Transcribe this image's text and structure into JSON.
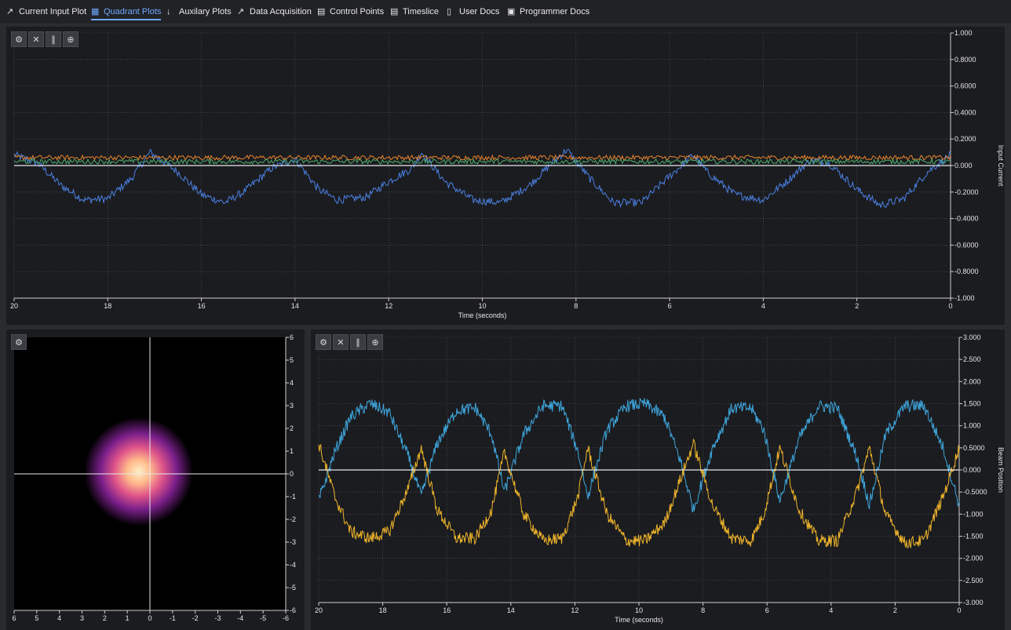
{
  "nav": {
    "tabs": [
      {
        "label": "Current Input Plot",
        "icon": "line-chart-icon",
        "active": false
      },
      {
        "label": "Quadrant Plots",
        "icon": "grid-icon",
        "active": true
      },
      {
        "label": "Auxilary Plots",
        "icon": "probe-icon",
        "active": false
      },
      {
        "label": "Data Acquisition",
        "icon": "area-chart-icon",
        "active": false
      },
      {
        "label": "Control Points",
        "icon": "table-icon",
        "active": false
      },
      {
        "label": "Timeslice",
        "icon": "table-icon",
        "active": false
      },
      {
        "label": "User Docs",
        "icon": "book-icon",
        "active": false
      },
      {
        "label": "Programmer Docs",
        "icon": "terminal-icon",
        "active": false
      }
    ]
  },
  "colors": {
    "background": "#1b1c20",
    "blue_series": "#4a7fe0",
    "orange_series": "#e8842c",
    "green_series": "#4cae6a",
    "yellow_series": "#f0b52a",
    "cyan_series": "#3ea6dc",
    "zero_line": "#e8e8e8"
  },
  "chart_data": [
    {
      "type": "line",
      "name": "input-current-plot",
      "xlabel": "Time (seconds)",
      "ylabel": "Input Current",
      "xlim": [
        20,
        0
      ],
      "ylim": [
        -1.0,
        1.0
      ],
      "x_ticks": [
        "20",
        "18",
        "16",
        "14",
        "12",
        "10",
        "8",
        "6",
        "4",
        "2",
        "0"
      ],
      "y_ticks": [
        "1.000",
        "0.8000",
        "0.6000",
        "0.4000",
        "0.2000",
        "0.000",
        "-0.2000",
        "-0.4000",
        "-0.6000",
        "-0.8000",
        "-1.000"
      ],
      "grid": true,
      "series": [
        {
          "color": "#4a7fe0",
          "x": [
            20,
            19.5,
            19,
            18.5,
            18,
            17.5,
            17.1,
            16.5,
            16,
            15.5,
            15.1,
            14.5,
            14,
            13.5,
            13.1,
            12.5,
            12,
            11.5,
            11.3,
            10.8,
            10.2,
            9.6,
            9,
            8.5,
            8.2,
            7.7,
            7.2,
            6.6,
            6,
            5.5,
            5.2,
            4.6,
            4,
            3.5,
            3,
            2.6,
            2,
            1.5,
            1,
            0.5,
            0
          ],
          "y": [
            0.08,
            0.02,
            -0.15,
            -0.26,
            -0.25,
            -0.1,
            0.1,
            -0.05,
            -0.22,
            -0.28,
            -0.2,
            -0.02,
            0.05,
            -0.18,
            -0.26,
            -0.24,
            -0.12,
            -0.02,
            0.1,
            -0.12,
            -0.26,
            -0.28,
            -0.15,
            0.02,
            0.12,
            -0.1,
            -0.28,
            -0.28,
            -0.08,
            0.08,
            -0.05,
            -0.22,
            -0.26,
            -0.12,
            0.04,
            0.02,
            -0.18,
            -0.3,
            -0.25,
            -0.05,
            0.08
          ]
        },
        {
          "color": "#e8842c",
          "x": [
            20,
            0
          ],
          "y": [
            0.06,
            0.06
          ]
        },
        {
          "color": "#4cae6a",
          "x": [
            20,
            0
          ],
          "y": [
            0.03,
            0.03
          ]
        },
        {
          "color": "#e8e8e8",
          "x": [
            20,
            0
          ],
          "y": [
            0.0,
            0.0
          ]
        }
      ]
    },
    {
      "type": "heatmap",
      "name": "beam-spot-plot",
      "xlim": [
        6,
        -6
      ],
      "ylim": [
        -6,
        6
      ],
      "x_ticks": [
        "6",
        "5",
        "4",
        "3",
        "2",
        "1",
        "0",
        "-1",
        "-2",
        "-3",
        "-4",
        "-5",
        "-6"
      ],
      "y_ticks": [
        "6",
        "5",
        "4",
        "3",
        "2",
        "1",
        "0",
        "-1",
        "-2",
        "-3",
        "-4",
        "-5",
        "-6"
      ],
      "spot_center": [
        0.5,
        0.1
      ],
      "spot_radius": 2.4
    },
    {
      "type": "line",
      "name": "beam-position-plot",
      "xlabel": "Time (seconds)",
      "ylabel": "Beam Position",
      "xlim": [
        20,
        0
      ],
      "ylim": [
        -3.0,
        3.0
      ],
      "x_ticks": [
        "20",
        "18",
        "16",
        "14",
        "12",
        "10",
        "8",
        "6",
        "4",
        "2",
        "0"
      ],
      "y_ticks": [
        "3.000",
        "2.500",
        "2.000",
        "1.500",
        "1.000",
        "0.5000",
        "0.000",
        "-0.5000",
        "-1.000",
        "-1.500",
        "-2.000",
        "-2.500",
        "-3.000"
      ],
      "grid": true,
      "series": [
        {
          "color": "#3ea6dc",
          "x": [
            20,
            19.5,
            19,
            18.4,
            17.8,
            17.2,
            16.8,
            16.3,
            15.7,
            15.1,
            14.6,
            14.2,
            13.6,
            13,
            12.4,
            11.9,
            11.6,
            11,
            10.4,
            9.8,
            9.2,
            8.7,
            8.3,
            7.7,
            7.1,
            6.5,
            6.1,
            5.6,
            5,
            4.4,
            3.8,
            3.2,
            2.8,
            2.3,
            1.7,
            1.1,
            0.5,
            0
          ],
          "y": [
            -0.7,
            0.4,
            1.2,
            1.5,
            1.3,
            0.3,
            -0.6,
            0.6,
            1.35,
            1.4,
            0.8,
            -0.5,
            0.8,
            1.45,
            1.45,
            0.4,
            -0.6,
            0.9,
            1.45,
            1.5,
            1.2,
            0.2,
            -0.9,
            0.5,
            1.4,
            1.4,
            0.9,
            -0.7,
            0.7,
            1.45,
            1.4,
            0.3,
            -0.8,
            0.8,
            1.45,
            1.45,
            0.5,
            -0.8
          ]
        },
        {
          "color": "#f0b52a",
          "x": [
            20,
            19.5,
            19,
            18.4,
            17.8,
            17.2,
            16.8,
            16.3,
            15.7,
            15.1,
            14.6,
            14.2,
            13.6,
            13,
            12.4,
            11.9,
            11.6,
            11,
            10.4,
            9.8,
            9.2,
            8.7,
            8.3,
            7.7,
            7.1,
            6.5,
            6.1,
            5.6,
            5,
            4.4,
            3.8,
            3.2,
            2.8,
            2.3,
            1.7,
            1.1,
            0.5,
            0
          ],
          "y": [
            0.6,
            -0.6,
            -1.4,
            -1.55,
            -1.4,
            -0.4,
            0.5,
            -0.9,
            -1.55,
            -1.55,
            -0.9,
            0.4,
            -1.0,
            -1.6,
            -1.55,
            -0.6,
            0.5,
            -1.0,
            -1.6,
            -1.6,
            -1.2,
            -0.2,
            0.6,
            -0.8,
            -1.55,
            -1.6,
            -1.0,
            0.5,
            -0.9,
            -1.6,
            -1.6,
            -0.5,
            0.5,
            -1.0,
            -1.65,
            -1.6,
            -0.6,
            0.5
          ]
        },
        {
          "color": "#e8e8e8",
          "x": [
            20,
            0
          ],
          "y": [
            0.0,
            0.0
          ]
        }
      ]
    }
  ]
}
